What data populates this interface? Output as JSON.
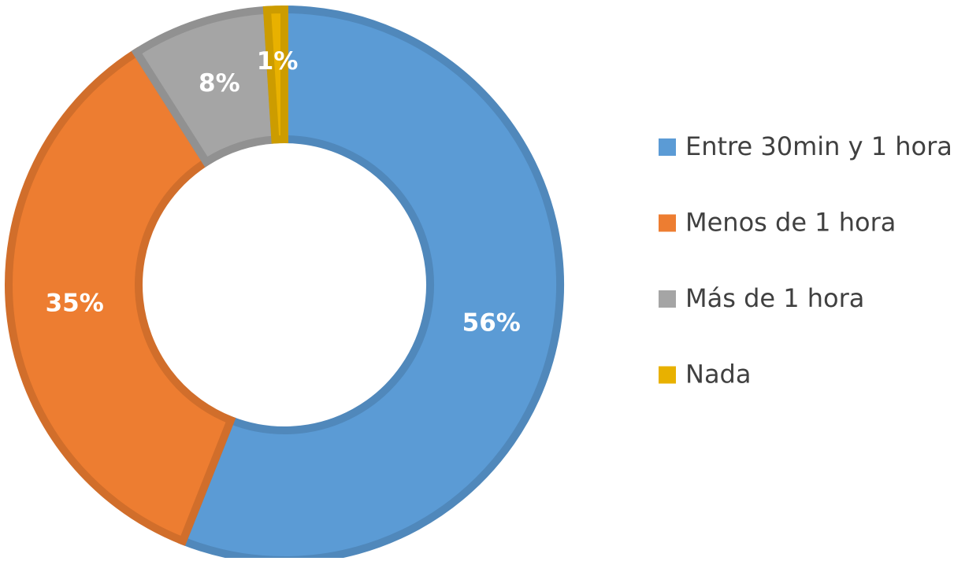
{
  "chart_data": {
    "type": "donut",
    "categories": [
      "Entre 30min y 1 hora",
      "Menos de 1 hora",
      "Más de 1 hora",
      "Nada"
    ],
    "values": [
      56,
      35,
      8,
      1
    ],
    "value_labels": [
      "56%",
      "35%",
      "8%",
      "1%"
    ],
    "colors": [
      "#5b9bd5",
      "#ed7d31",
      "#a5a5a5",
      "#e8b100"
    ],
    "legend": "right"
  }
}
